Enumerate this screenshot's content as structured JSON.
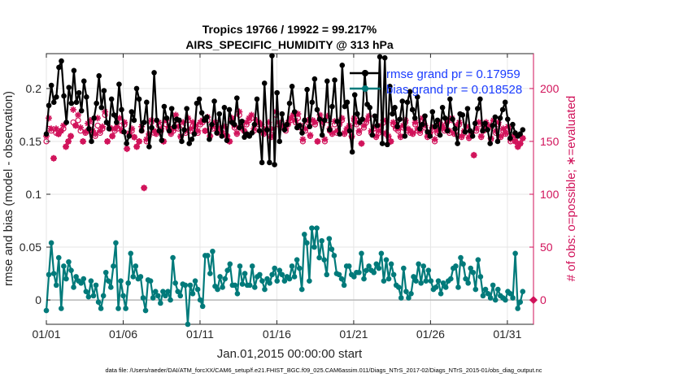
{
  "chart_data": {
    "type": "line",
    "title_line1": "Tropics 19766 / 19922 = 99.217%",
    "title_line2": "AIRS_SPECIFIC_HUMIDITY @ 313 hPa",
    "xlabel": "Jan.01,2015 00:00:00 start",
    "ylabel_left": "rmse and bias (model - observation)",
    "ylabel_right": "# of obs: o=possible; ∗=evaluated",
    "footer": "data file: /Users/raeder/DAI/ATM_forcXX/CAM6_setup/f.e21.FHIST_BGC.f09_025.CAM6assim.011/Diags_NTrS_2017-02/Diags_NTrS_2015-01/obs_diag_output.nc",
    "xlim": [
      0,
      31.7
    ],
    "ylim_left": [
      -0.023,
      0.233
    ],
    "ylim_right": [
      -23,
      233
    ],
    "x_ticks": [
      0,
      5,
      10,
      15,
      20,
      25,
      30
    ],
    "x_ticklabels": [
      "01/01",
      "01/06",
      "01/11",
      "01/16",
      "01/21",
      "01/26",
      "01/31"
    ],
    "y_ticks_left": [
      0,
      0.05,
      0.1,
      0.15,
      0.2
    ],
    "y_ticklabels_left": [
      "0",
      "0.05",
      "0.1",
      "0.15",
      "0.2"
    ],
    "y_ticks_right": [
      0,
      50,
      100,
      150,
      200
    ],
    "y_ticklabels_right": [
      "0",
      "50",
      "100",
      "150",
      "200"
    ],
    "colors": {
      "rmse": "#000000",
      "bias": "#007a7a",
      "obs": "#d1125a",
      "legend_text": "#1a3cff",
      "axis": "#262626",
      "zero_line": "#b8b8b8"
    },
    "series": [
      {
        "name": "rmse grand pr = 0.17959",
        "axis": "left",
        "values": [
          0.157,
          0.184,
          0.203,
          0.187,
          0.192,
          0.22,
          0.226,
          0.193,
          0.168,
          0.201,
          0.186,
          0.217,
          0.187,
          0.196,
          0.179,
          0.207,
          0.192,
          0.162,
          0.15,
          0.172,
          0.186,
          0.212,
          0.182,
          0.198,
          0.168,
          0.162,
          0.19,
          0.175,
          0.168,
          0.204,
          0.18,
          0.159,
          0.148,
          0.155,
          0.178,
          0.17,
          0.2,
          0.19,
          0.16,
          0.168,
          0.187,
          0.145,
          0.163,
          0.215,
          0.17,
          0.16,
          0.151,
          0.183,
          0.172,
          0.16,
          0.181,
          0.164,
          0.171,
          0.17,
          0.15,
          0.161,
          0.181,
          0.148,
          0.152,
          0.157,
          0.186,
          0.19,
          0.177,
          0.17,
          0.173,
          0.152,
          0.166,
          0.188,
          0.158,
          0.176,
          0.155,
          0.182,
          0.151,
          0.18,
          0.168,
          0.166,
          0.191,
          0.163,
          0.169,
          0.154,
          0.157,
          0.155,
          0.158,
          0.166,
          0.19,
          0.16,
          0.13,
          0.205,
          0.161,
          0.13,
          0.231,
          0.128,
          0.196,
          0.15,
          0.176,
          0.161,
          0.166,
          0.186,
          0.202,
          0.178,
          0.163,
          0.165,
          0.158,
          0.17,
          0.199,
          0.164,
          0.187,
          0.209,
          0.18,
          0.171,
          0.156,
          0.17,
          0.207,
          0.161,
          0.183,
          0.208,
          0.169,
          0.157,
          0.222,
          0.183,
          0.187,
          0.16,
          0.14,
          0.194,
          0.176,
          0.168,
          0.171,
          0.215,
          0.185,
          0.182,
          0.156,
          0.174,
          0.165,
          0.23,
          0.148,
          0.229,
          0.147,
          0.202,
          0.176,
          0.182,
          0.164,
          0.171,
          0.188,
          0.155,
          0.187,
          0.197,
          0.18,
          0.172,
          0.192,
          0.162,
          0.166,
          0.174,
          0.159,
          0.155,
          0.178,
          0.164,
          0.17,
          0.156,
          0.182,
          0.172,
          0.16,
          0.19,
          0.171,
          0.162,
          0.148,
          0.176,
          0.175,
          0.159,
          0.181,
          0.16,
          0.155,
          0.167,
          0.181,
          0.19,
          0.16,
          0.167,
          0.161,
          0.148,
          0.165,
          0.173,
          0.15,
          0.172,
          0.18,
          0.187,
          0.171,
          0.153,
          0.166,
          0.158,
          0.155,
          0.157,
          0.161
        ]
      },
      {
        "name": "bias grand pr = 0.018528",
        "axis": "left",
        "values": [
          -0.01,
          0.024,
          0.054,
          0.025,
          0.014,
          0.04,
          -0.008,
          0.032,
          0.02,
          0.036,
          0.028,
          0.012,
          0.022,
          0.018,
          0.016,
          0.02,
          0.008,
          0.003,
          0.018,
          0.004,
          0.014,
          -0.002,
          -0.008,
          0.004,
          0.026,
          0.018,
          0.012,
          0.032,
          0.054,
          -0.008,
          0.018,
          0.004,
          -0.008,
          0.016,
          0.044,
          0.022,
          0.032,
          0.02,
          0.022,
          0.002,
          -0.01,
          0.019,
          0.018,
          0.002,
          0.008,
          0.004,
          -0.003,
          0.008,
          0.004,
          0.008,
          0.0,
          0.04,
          0.016,
          0.008,
          0.004,
          0.015,
          0.014,
          -0.023,
          0.014,
          0.006,
          0.018,
          0.01,
          0.0,
          -0.006,
          0.042,
          0.042,
          0.025,
          0.046,
          0.013,
          0.01,
          0.022,
          0.012,
          0.02,
          0.028,
          0.034,
          0.014,
          0.014,
          0.006,
          0.032,
          0.015,
          0.025,
          0.014,
          0.014,
          0.032,
          0.012,
          0.022,
          0.024,
          0.018,
          0.01,
          0.02,
          0.016,
          0.024,
          0.03,
          0.018,
          0.028,
          0.024,
          0.018,
          0.022,
          0.02,
          0.032,
          0.022,
          0.038,
          0.03,
          0.01,
          0.062,
          0.054,
          0.018,
          0.068,
          0.05,
          0.068,
          0.04,
          0.056,
          0.038,
          0.024,
          0.058,
          0.048,
          0.042,
          0.025,
          0.024,
          0.02,
          0.014,
          0.032,
          0.032,
          0.024,
          0.022,
          0.026,
          0.026,
          0.044,
          0.02,
          0.028,
          0.032,
          0.028,
          0.026,
          0.034,
          0.03,
          0.044,
          0.018,
          0.038,
          0.02,
          0.034,
          0.024,
          0.014,
          0.012,
          0.002,
          0.03,
          0.008,
          0.002,
          0.006,
          0.022,
          0.018,
          0.034,
          0.016,
          0.032,
          0.018,
          0.028,
          0.018,
          0.01,
          0.012,
          0.018,
          0.006,
          0.016,
          0.012,
          0.018,
          0.02,
          0.03,
          0.032,
          0.012,
          0.04,
          0.034,
          0.02,
          0.016,
          0.03,
          0.026,
          0.01,
          0.038,
          0.022,
          0.004,
          0.01,
          0.006,
          0.002,
          0.014,
          0.0,
          0.01,
          0.004,
          0.002,
          0.0,
          0.008,
          0.006,
          0.002,
          0.044,
          -0.008,
          -0.002,
          0.008
        ]
      }
    ],
    "obs_evaluated": [
      155,
      172,
      162,
      134,
      162,
      157,
      160,
      165,
      145,
      150,
      155,
      180,
      165,
      175,
      163,
      150,
      159,
      167,
      170,
      160,
      157,
      172,
      160,
      164,
      178,
      150,
      163,
      155,
      162,
      164,
      172,
      160,
      168,
      143,
      158,
      162,
      154,
      145,
      150,
      164,
      106,
      152,
      157,
      170,
      160,
      158,
      168,
      162,
      150,
      170,
      164,
      158,
      162,
      175,
      164,
      155,
      168,
      160,
      172,
      162,
      168,
      165,
      160,
      168,
      170,
      160,
      173,
      155,
      164,
      168,
      160,
      163,
      158,
      164,
      155,
      150,
      172,
      165,
      158,
      178,
      164,
      160,
      168,
      172,
      175,
      162,
      170,
      168,
      166,
      158,
      162,
      168,
      155,
      162,
      178,
      168,
      165,
      165,
      162,
      168,
      172,
      175,
      170,
      176,
      165,
      152,
      162,
      170,
      156,
      170,
      168,
      150,
      175,
      168,
      152,
      174,
      162,
      158,
      169,
      160,
      168,
      172,
      158,
      162,
      165,
      155,
      172,
      168,
      160,
      148,
      165,
      170,
      174,
      160,
      164,
      155,
      160,
      165,
      170,
      158,
      155,
      150,
      168,
      164,
      162,
      155,
      165,
      170,
      162,
      160,
      158,
      168,
      162,
      160,
      172,
      165,
      155,
      158,
      163,
      152,
      160,
      168,
      165,
      162,
      170,
      160,
      172,
      158,
      165,
      168,
      155,
      160,
      164,
      154,
      158,
      137,
      162,
      168,
      155,
      162,
      168,
      165,
      153,
      170,
      160,
      168,
      155,
      162,
      158,
      164,
      152,
      155,
      150,
      145,
      148,
      153
    ],
    "obs_possible_approx": [
      150,
      162,
      160,
      134,
      158,
      157,
      160,
      162,
      145,
      150,
      155,
      168,
      165,
      170,
      160,
      150,
      158,
      160,
      165,
      158,
      155,
      165,
      158,
      162,
      175,
      150,
      162,
      155,
      160,
      162,
      165,
      160,
      166,
      143,
      156,
      160,
      154,
      145,
      150,
      160,
      106,
      150,
      155,
      168,
      158,
      157,
      165,
      160,
      150,
      166,
      162,
      157,
      160,
      170,
      162,
      154,
      165,
      158,
      170,
      160,
      165,
      164,
      158,
      166,
      168,
      160,
      170,
      155,
      162,
      166,
      158,
      160,
      157,
      162,
      155,
      150,
      170,
      163,
      157,
      175,
      162,
      160,
      166,
      170,
      172,
      160,
      168,
      166,
      164,
      157,
      160,
      166,
      154,
      160,
      175,
      166,
      163,
      164,
      160,
      166,
      170,
      172,
      168,
      172,
      163,
      150,
      160,
      168,
      155,
      168,
      166,
      150,
      172,
      166,
      150,
      170,
      160,
      157,
      166,
      158,
      166,
      170,
      157,
      160,
      163,
      154,
      170,
      166,
      158,
      148,
      163,
      168,
      172,
      158,
      162,
      154,
      158,
      163,
      168,
      157,
      154,
      150,
      166,
      162,
      160,
      154,
      163,
      168,
      160,
      158,
      157,
      166,
      160,
      158,
      170,
      163,
      154,
      157,
      161,
      150,
      158,
      166,
      163,
      160,
      168,
      158,
      170,
      157,
      163,
      166,
      154,
      158,
      162,
      153,
      157,
      137,
      160,
      166,
      154,
      160,
      166,
      163,
      152,
      168,
      158,
      166,
      154,
      160,
      157,
      162,
      150,
      154,
      150,
      145,
      148,
      153
    ],
    "legend": {
      "rmse": "rmse grand pr = 0.17959",
      "bias": "bias grand pr = 0.018528"
    }
  }
}
